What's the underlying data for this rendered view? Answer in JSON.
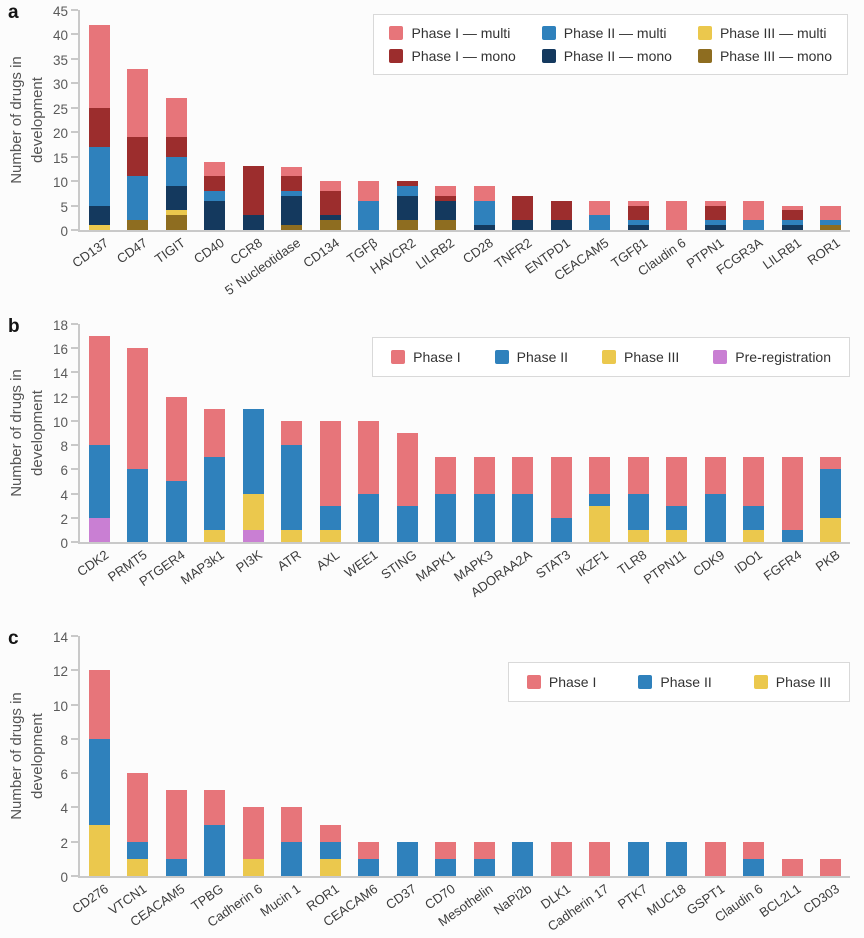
{
  "figure": {
    "background": "#fcfcfc",
    "panel_letters": [
      "a",
      "b",
      "c"
    ]
  },
  "chart_data": [
    {
      "type": "bar",
      "stacked": true,
      "panel_label": "a",
      "title": "",
      "xlabel": "",
      "ylabel": "Number of drugs in\ndevelopment",
      "ylim": [
        0,
        45
      ],
      "ytick_step": 5,
      "grid": false,
      "legend": {
        "position": "top-right",
        "layout": "three-columns-two-rows",
        "items": [
          {
            "label": "Phase I — multi",
            "color": "#E7757A"
          },
          {
            "label": "Phase I — mono",
            "color": "#9C2D2D"
          },
          {
            "label": "Phase II — multi",
            "color": "#2F81BC"
          },
          {
            "label": "Phase II — mono",
            "color": "#14395E"
          },
          {
            "label": "Phase III — multi",
            "color": "#EBC84D"
          },
          {
            "label": "Phase III — mono",
            "color": "#8E6D20"
          }
        ]
      },
      "categories": [
        "CD137",
        "CD47",
        "TIGIT",
        "CD40",
        "CCR8",
        "5' Nucleotidase",
        "CD134",
        "TGFβ",
        "HAVCR2",
        "LILRB2",
        "CD28",
        "TNFR2",
        "ENTPD1",
        "CEACAM5",
        "TGFβ1",
        "Claudin 6",
        "PTPN1",
        "FCGR3A",
        "LILRB1",
        "ROR1"
      ],
      "series": [
        {
          "name": "Phase III — mono",
          "color": "#8E6D20",
          "values": [
            0,
            2,
            3,
            0,
            0,
            1,
            2,
            0,
            2,
            2,
            0,
            0,
            0,
            0,
            0,
            0,
            0,
            0,
            0,
            1
          ]
        },
        {
          "name": "Phase III — multi",
          "color": "#EBC84D",
          "values": [
            1,
            0,
            1,
            0,
            0,
            0,
            0,
            0,
            0,
            0,
            0,
            0,
            0,
            0,
            0,
            0,
            0,
            0,
            0,
            0
          ]
        },
        {
          "name": "Phase II — mono",
          "color": "#14395E",
          "values": [
            4,
            0,
            5,
            6,
            3,
            6,
            1,
            0,
            5,
            4,
            1,
            2,
            2,
            0,
            1,
            0,
            1,
            0,
            1,
            0
          ]
        },
        {
          "name": "Phase II — multi",
          "color": "#2F81BC",
          "values": [
            12,
            9,
            6,
            2,
            0,
            1,
            0,
            6,
            2,
            0,
            5,
            0,
            0,
            3,
            1,
            0,
            1,
            2,
            1,
            1
          ]
        },
        {
          "name": "Phase I — mono",
          "color": "#9C2D2D",
          "values": [
            8,
            8,
            4,
            3,
            10,
            3,
            5,
            0,
            1,
            1,
            0,
            5,
            4,
            0,
            3,
            0,
            3,
            0,
            2,
            0
          ]
        },
        {
          "name": "Phase I — multi",
          "color": "#E7757A",
          "values": [
            17,
            14,
            8,
            3,
            0,
            2,
            2,
            4,
            0,
            2,
            3,
            0,
            0,
            3,
            1,
            6,
            1,
            4,
            1,
            3
          ]
        }
      ],
      "totals": [
        42,
        33,
        27,
        14,
        13,
        13,
        10,
        10,
        10,
        9,
        9,
        7,
        6,
        6,
        6,
        6,
        6,
        6,
        5,
        5
      ]
    },
    {
      "type": "bar",
      "stacked": true,
      "panel_label": "b",
      "title": "",
      "xlabel": "",
      "ylabel": "Number of drugs in\ndevelopment",
      "ylim": [
        0,
        18
      ],
      "ytick_step": 2,
      "grid": false,
      "legend": {
        "position": "top-right",
        "layout": "single-row",
        "items": [
          {
            "label": "Phase I",
            "color": "#E7757A"
          },
          {
            "label": "Phase II",
            "color": "#2F81BC"
          },
          {
            "label": "Phase III",
            "color": "#EBC84D"
          },
          {
            "label": "Pre-registration",
            "color": "#C97FD3"
          }
        ]
      },
      "categories": [
        "CDK2",
        "PRMT5",
        "PTGER4",
        "MAP3k1",
        "PI3K",
        "ATR",
        "AXL",
        "WEE1",
        "STING",
        "MAPK1",
        "MAPK3",
        "ADORAA2A",
        "STAT3",
        "IKZF1",
        "TLR8",
        "PTPN11",
        "CDK9",
        "IDO1",
        "FGFR4",
        "PKB"
      ],
      "series": [
        {
          "name": "Pre-registration",
          "color": "#C97FD3",
          "values": [
            2,
            0,
            0,
            0,
            1,
            0,
            0,
            0,
            0,
            0,
            0,
            0,
            0,
            0,
            0,
            0,
            0,
            0,
            0,
            0
          ]
        },
        {
          "name": "Phase III",
          "color": "#EBC84D",
          "values": [
            0,
            0,
            0,
            1,
            3,
            1,
            1,
            0,
            0,
            0,
            0,
            0,
            0,
            3,
            1,
            1,
            0,
            1,
            0,
            2
          ]
        },
        {
          "name": "Phase II",
          "color": "#2F81BC",
          "values": [
            6,
            6,
            5,
            6,
            7,
            7,
            2,
            4,
            3,
            4,
            4,
            4,
            2,
            1,
            3,
            2,
            4,
            2,
            1,
            4
          ]
        },
        {
          "name": "Phase I",
          "color": "#E7757A",
          "values": [
            9,
            10,
            7,
            4,
            0,
            2,
            7,
            6,
            6,
            3,
            3,
            3,
            5,
            3,
            3,
            4,
            3,
            4,
            6,
            1
          ]
        }
      ],
      "totals": [
        17,
        16,
        12,
        11,
        11,
        10,
        10,
        10,
        9,
        7,
        7,
        7,
        7,
        7,
        7,
        7,
        7,
        7,
        7,
        7
      ]
    },
    {
      "type": "bar",
      "stacked": true,
      "panel_label": "c",
      "title": "",
      "xlabel": "",
      "ylabel": "Number of drugs in\ndevelopment",
      "ylim": [
        0,
        14
      ],
      "ytick_step": 2,
      "grid": false,
      "legend": {
        "position": "top-right",
        "layout": "single-row",
        "items": [
          {
            "label": "Phase I",
            "color": "#E7757A"
          },
          {
            "label": "Phase II",
            "color": "#2F81BC"
          },
          {
            "label": "Phase III",
            "color": "#EBC84D"
          }
        ]
      },
      "categories": [
        "CD276",
        "VTCN1",
        "CEACAM5",
        "TPBG",
        "Cadherin 6",
        "Mucin 1",
        "ROR1",
        "CEACAM6",
        "CD37",
        "CD70",
        "Mesothelin",
        "NaPi2b",
        "DLK1",
        "Cadherin 17",
        "PTK7",
        "MUC18",
        "GSPT1",
        "Claudin 6",
        "BCL2L1",
        "CD303"
      ],
      "series": [
        {
          "name": "Phase III",
          "color": "#EBC84D",
          "values": [
            3,
            1,
            0,
            0,
            1,
            0,
            1,
            0,
            0,
            0,
            0,
            0,
            0,
            0,
            0,
            0,
            0,
            0,
            0,
            0
          ]
        },
        {
          "name": "Phase II",
          "color": "#2F81BC",
          "values": [
            5,
            1,
            1,
            3,
            0,
            2,
            1,
            1,
            2,
            1,
            1,
            2,
            0,
            0,
            2,
            2,
            0,
            1,
            0,
            0
          ]
        },
        {
          "name": "Phase I",
          "color": "#E7757A",
          "values": [
            4,
            4,
            4,
            2,
            3,
            2,
            1,
            1,
            0,
            1,
            1,
            0,
            2,
            2,
            0,
            0,
            2,
            1,
            1,
            1
          ]
        }
      ],
      "totals": [
        12,
        6,
        5,
        5,
        4,
        4,
        3,
        2,
        2,
        2,
        2,
        2,
        2,
        2,
        2,
        2,
        2,
        2,
        1,
        1
      ]
    }
  ]
}
